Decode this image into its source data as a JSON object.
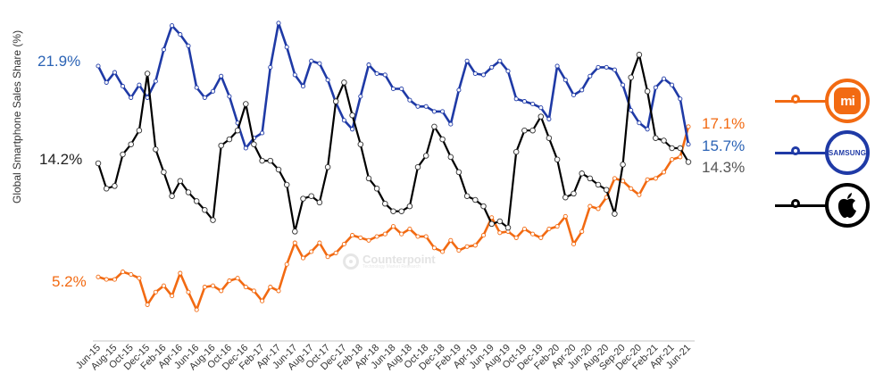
{
  "chart_data": {
    "type": "line",
    "title": "",
    "xlabel": "",
    "ylabel": "Global Smartphone Sales Share (%)",
    "ylim": [
      0,
      27
    ],
    "grid": false,
    "legend_position": "right",
    "x_tick_labels": [
      "Jun-15",
      "Aug-15",
      "Oct-15",
      "Dec-15",
      "Feb-16",
      "Apr-16",
      "Jun-16",
      "Aug-16",
      "Oct-16",
      "Dec-16",
      "Feb-17",
      "Apr-17",
      "Jun-17",
      "Aug-17",
      "Oct-17",
      "Dec-17",
      "Feb-18",
      "Apr-18",
      "Jun-18",
      "Aug-18",
      "Oct-18",
      "Dec-18",
      "Feb-19",
      "Apr-19",
      "Jun-19",
      "Aug-19",
      "Oct-19",
      "Dec-19",
      "Feb-20",
      "Apr-20",
      "Jun-20",
      "Aug-20",
      "Sep-20",
      "Dec-20",
      "Feb-21",
      "Apr-21",
      "Jun-21"
    ],
    "x_count": 73,
    "series": [
      {
        "name": "Samsung",
        "color": "#1f3aa6",
        "start_label": "21.9%",
        "end_label": "15.7%",
        "label_color": "#2b63b5",
        "values": [
          21.9,
          20.6,
          21.4,
          20.3,
          19.4,
          20.4,
          19.4,
          20.7,
          23.2,
          25.1,
          24.4,
          23.5,
          20.2,
          19.4,
          19.9,
          21.1,
          19.5,
          17.4,
          15.4,
          16.2,
          16.6,
          21.8,
          25.3,
          23.4,
          21.2,
          20.3,
          22.3,
          22.1,
          20.8,
          19.0,
          17.6,
          16.9,
          19.5,
          22.0,
          21.3,
          21.2,
          20.1,
          20.1,
          19.2,
          18.7,
          18.7,
          18.3,
          18.3,
          17.3,
          20.0,
          22.3,
          21.3,
          21.2,
          21.8,
          22.3,
          21.5,
          19.3,
          19.1,
          18.9,
          18.6,
          17.7,
          21.9,
          20.8,
          19.6,
          20.0,
          21.1,
          21.8,
          21.8,
          21.6,
          20.4,
          18.4,
          17.4,
          16.9,
          20.2,
          20.9,
          20.4,
          19.3,
          15.7
        ]
      },
      {
        "name": "Apple",
        "color": "#000000",
        "start_label": "14.2%",
        "end_label": "14.3%",
        "label_color": "#222222",
        "end_label_color": "#555555",
        "values": [
          14.2,
          12.2,
          12.4,
          14.9,
          15.7,
          16.8,
          21.3,
          15.3,
          13.5,
          11.6,
          12.8,
          11.9,
          11.2,
          10.5,
          9.7,
          15.6,
          16.1,
          16.8,
          18.9,
          15.7,
          14.4,
          14.4,
          13.7,
          12.5,
          8.8,
          11.4,
          11.6,
          11.1,
          13.9,
          19.1,
          20.6,
          18.0,
          15.7,
          13.0,
          12.2,
          11.0,
          10.4,
          10.4,
          10.8,
          13.9,
          14.8,
          17.1,
          16.1,
          14.7,
          13.5,
          11.6,
          11.3,
          10.8,
          9.4,
          9.6,
          9.1,
          15.1,
          16.8,
          16.8,
          17.9,
          16.2,
          14.5,
          11.5,
          11.8,
          13.4,
          13.0,
          12.5,
          12.1,
          10.2,
          14.1,
          21.0,
          22.8,
          19.9,
          16.2,
          16.0,
          15.4,
          15.4,
          14.3
        ]
      },
      {
        "name": "Xiaomi",
        "color": "#f26a12",
        "start_label": "5.2%",
        "end_label": "17.1%",
        "label_color": "#f26a12",
        "values": [
          5.2,
          5.0,
          5.0,
          5.6,
          5.4,
          5.1,
          3.0,
          4.0,
          4.5,
          3.7,
          5.5,
          4.0,
          2.6,
          4.4,
          4.5,
          4.1,
          4.9,
          5.1,
          4.4,
          4.1,
          3.3,
          4.4,
          4.1,
          6.2,
          7.9,
          6.7,
          7.2,
          7.9,
          6.8,
          7.1,
          7.8,
          8.5,
          8.3,
          8.1,
          8.4,
          8.6,
          9.2,
          8.6,
          9.0,
          8.4,
          8.4,
          7.5,
          7.2,
          8.1,
          7.3,
          7.6,
          7.7,
          8.5,
          9.9,
          8.7,
          8.8,
          8.3,
          9.0,
          8.6,
          8.3,
          9.0,
          9.2,
          10.0,
          7.8,
          8.8,
          10.8,
          10.6,
          11.5,
          13.0,
          12.8,
          12.2,
          11.7,
          12.9,
          13.0,
          13.5,
          14.5,
          14.7,
          17.1
        ]
      }
    ]
  },
  "labels": {
    "samsung_start": "21.9%",
    "apple_start": "14.2%",
    "xiaomi_start": "5.2%",
    "xiaomi_end": "17.1%",
    "samsung_end": "15.7%",
    "apple_end": "14.3%"
  },
  "watermark": {
    "title": "Counterpoint",
    "subtitle": "Technology Market Research"
  },
  "legend": {
    "xiaomi": {
      "icon": "xiaomi-logo-icon",
      "text": "mi",
      "color": "#f26a12"
    },
    "samsung": {
      "icon": "samsung-logo-icon",
      "text": "SAMSUNG",
      "color": "#1f3aa6"
    },
    "apple": {
      "icon": "apple-logo-icon",
      "color": "#000000"
    }
  }
}
